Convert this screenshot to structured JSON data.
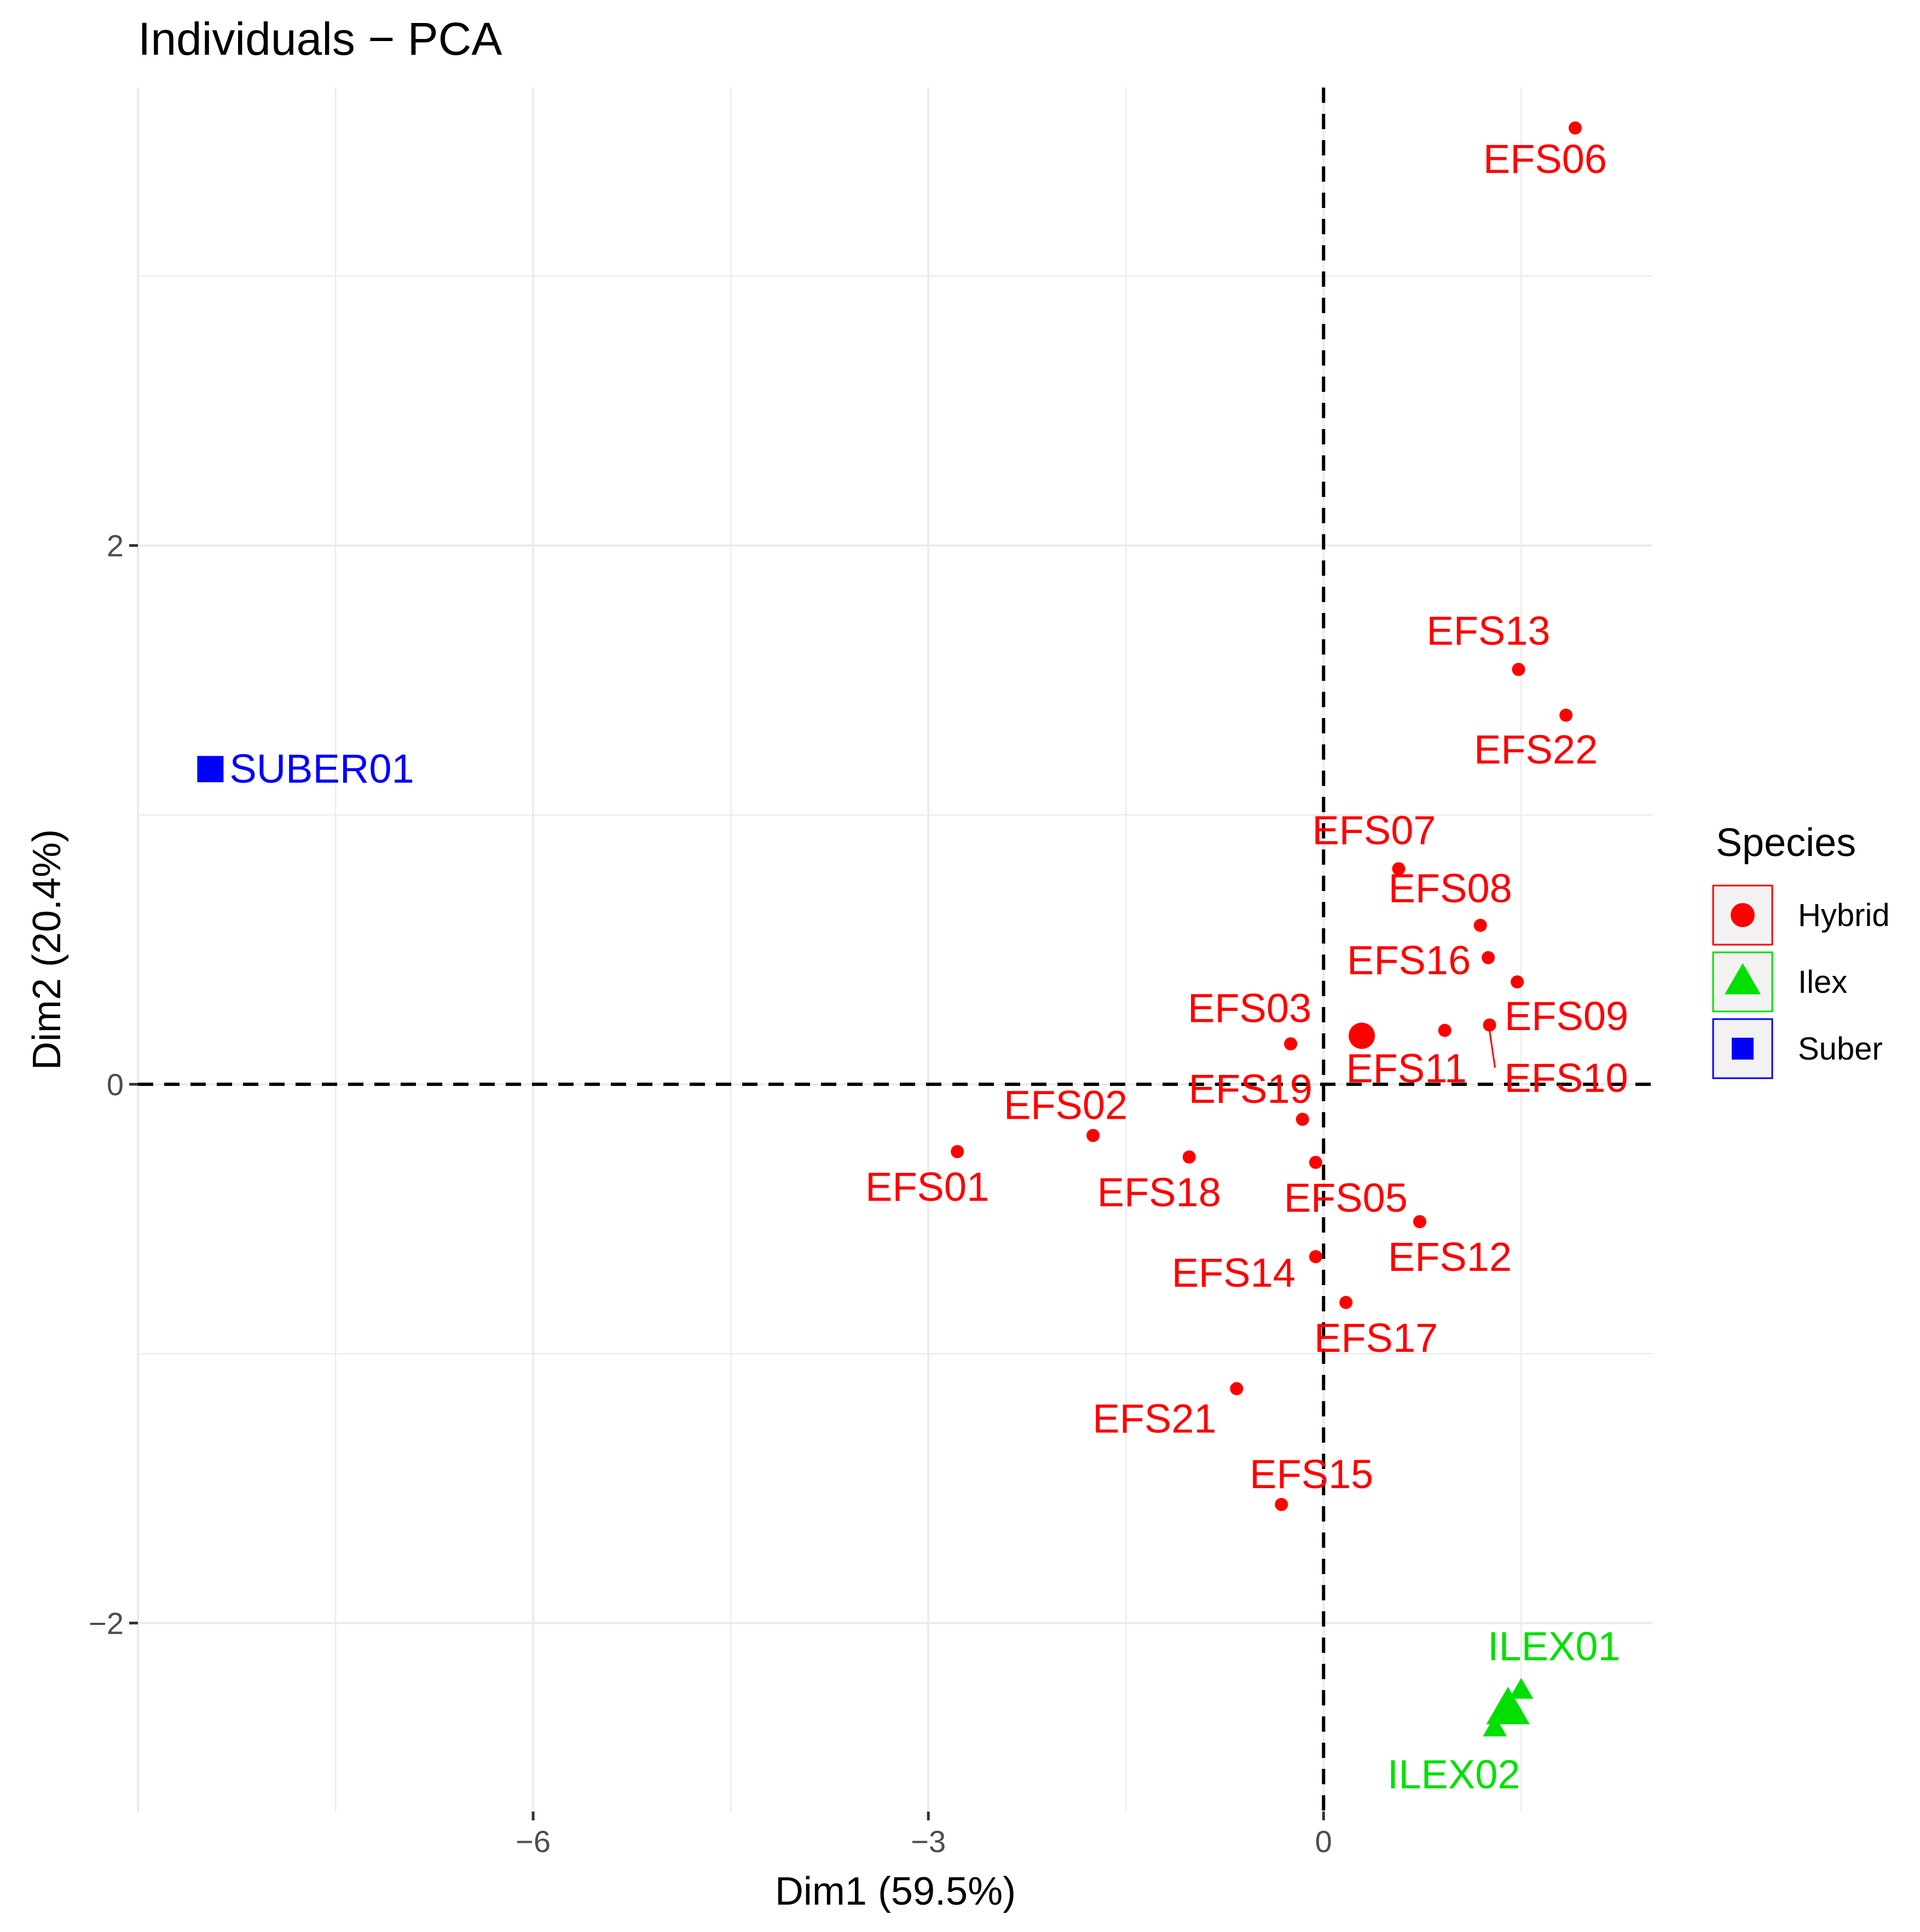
{
  "chart_data": {
    "type": "scatter",
    "title": "Individuals − PCA",
    "xlabel": "Dim1 (59.5%)",
    "ylabel": "Dim2 (20.4%)",
    "xlim": [
      -9.0,
      2.5
    ],
    "ylim": [
      -2.7,
      3.7
    ],
    "x_ticks": [
      -6,
      -3,
      0
    ],
    "x_tick_labels": [
      "−6",
      "−3",
      "0"
    ],
    "y_ticks": [
      -2,
      0,
      2
    ],
    "y_tick_labels": [
      "−2",
      "0",
      "2"
    ],
    "reference_lines": {
      "x": 0,
      "y": 0,
      "style": "dashed"
    },
    "grid": true,
    "legend": {
      "title": "Species",
      "placement": "right"
    },
    "series": [
      {
        "name": "Hybrid",
        "color": "#ff0000",
        "marker": "circle",
        "centroid": {
          "x": 0.29,
          "y": 0.18
        },
        "points": [
          {
            "label": "EFS06",
            "x": 1.91,
            "y": 3.55
          },
          {
            "label": "EFS13",
            "x": 1.48,
            "y": 1.54
          },
          {
            "label": "EFS22",
            "x": 1.84,
            "y": 1.37
          },
          {
            "label": "EFS07",
            "x": 0.57,
            "y": 0.8
          },
          {
            "label": "EFS08",
            "x": 1.19,
            "y": 0.59
          },
          {
            "label": "EFS16",
            "x": 1.25,
            "y": 0.47
          },
          {
            "label": "EFS09",
            "x": 1.47,
            "y": 0.38
          },
          {
            "label": "EFS10",
            "x": 1.26,
            "y": 0.22
          },
          {
            "label": "EFS11",
            "x": 0.92,
            "y": 0.2
          },
          {
            "label": "EFS03",
            "x": -0.25,
            "y": 0.15
          },
          {
            "label": "EFS19",
            "x": -0.16,
            "y": -0.13
          },
          {
            "label": "EFS05",
            "x": -0.06,
            "y": -0.29
          },
          {
            "label": "EFS02",
            "x": -1.75,
            "y": -0.19
          },
          {
            "label": "EFS18",
            "x": -1.02,
            "y": -0.27
          },
          {
            "label": "EFS01",
            "x": -2.78,
            "y": -0.25
          },
          {
            "label": "EFS12",
            "x": 0.73,
            "y": -0.51
          },
          {
            "label": "EFS14",
            "x": -0.06,
            "y": -0.64
          },
          {
            "label": "EFS17",
            "x": 0.17,
            "y": -0.81
          },
          {
            "label": "EFS21",
            "x": -0.66,
            "y": -1.13
          },
          {
            "label": "EFS15",
            "x": -0.32,
            "y": -1.56
          }
        ]
      },
      {
        "name": "Ilex",
        "color": "#00e000",
        "marker": "triangle",
        "centroid": {
          "x": 1.4,
          "y": -2.32
        },
        "points": [
          {
            "label": "ILEX01",
            "x": 1.5,
            "y": -2.25
          },
          {
            "label": "ILEX02",
            "x": 1.3,
            "y": -2.39
          }
        ]
      },
      {
        "name": "Suber",
        "color": "#0000ff",
        "marker": "square",
        "points": [
          {
            "label": "SUBER01",
            "x": -8.45,
            "y": 1.17
          }
        ]
      }
    ]
  }
}
